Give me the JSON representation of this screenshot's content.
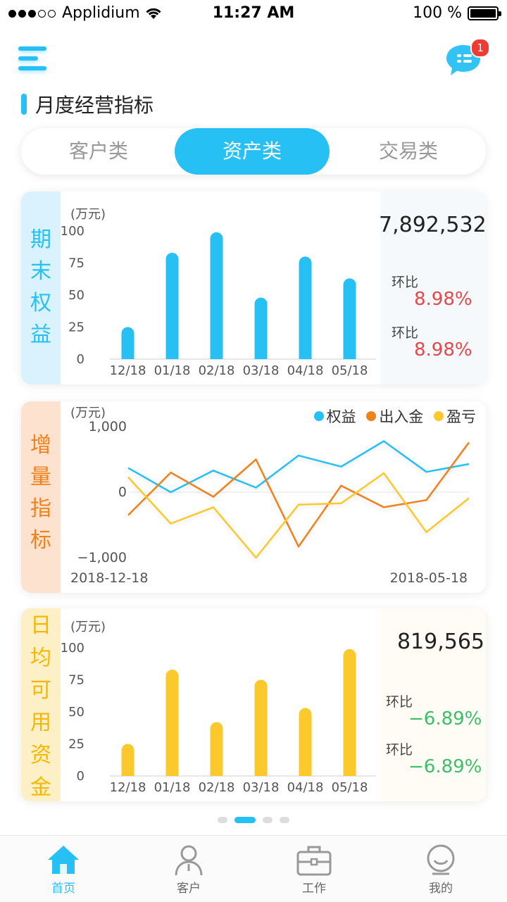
{
  "status_bar": {
    "carrier": "Applidium",
    "time": "11:27 AM",
    "battery": "100 %"
  },
  "header": {
    "menu_icon": "menu-icon",
    "chat_icon": "chat-icon",
    "notification_count": "1"
  },
  "section": {
    "title": "月度经营指标"
  },
  "tabs": [
    {
      "label": "客户类",
      "active": false
    },
    {
      "label": "资产类",
      "active": true
    },
    {
      "label": "交易类",
      "active": false
    }
  ],
  "cards": {
    "equity": {
      "title": "期末权益",
      "unit": "(万元)",
      "value": "7,892,532",
      "mom_label_1": "环比",
      "mom_value_1": "8.98%",
      "mom_label_2": "环比",
      "mom_value_2": "8.98%",
      "side_color": "#d9f2fd",
      "title_color": "#27c0f4",
      "value_color": "#e5474a"
    },
    "increment": {
      "title": "增量指标",
      "unit": "(万元)",
      "start_date": "2018-12-18",
      "end_date": "2018-05-18",
      "side_color": "#fde3cf",
      "title_color": "#f0821e"
    },
    "daily": {
      "title": "日均可用资金",
      "unit": "(万元)",
      "value": "819,565",
      "mom_label_1": "环比",
      "mom_value_1": "−6.89%",
      "mom_label_2": "环比",
      "mom_value_2": "−6.89%",
      "side_color": "#fdf0c6",
      "title_color": "#f5b800",
      "value_color": "#3dbf6a"
    }
  },
  "chart_data": [
    {
      "type": "bar",
      "categories": [
        "12/18",
        "01/18",
        "02/18",
        "03/18",
        "04/18",
        "05/18"
      ],
      "values": [
        25,
        83,
        99,
        48,
        80,
        63
      ],
      "ylabel": "(万元)",
      "yticks": [
        "0",
        "25",
        "50",
        "75",
        "100"
      ],
      "ylim": [
        0,
        100
      ],
      "color": "#27c0f4"
    },
    {
      "type": "line",
      "yticks": [
        "1,000",
        "0",
        "−1,000"
      ],
      "ylim": [
        -1000,
        1000
      ],
      "ylabel": "(万元)",
      "legend_position": "top-right",
      "x": [
        0,
        1,
        2,
        3,
        4,
        5,
        6,
        7,
        8,
        9,
        10,
        11
      ],
      "series": [
        {
          "name": "权益",
          "color": "#27c0f4",
          "values": [
            370,
            0,
            330,
            70,
            560,
            390,
            780,
            310,
            430,
            430,
            430,
            430
          ]
        },
        {
          "name": "出入金",
          "color": "#f0821e",
          "values": [
            -350,
            300,
            -70,
            500,
            -830,
            100,
            -230,
            -120,
            760,
            760,
            760,
            760
          ]
        },
        {
          "name": "盈亏",
          "color": "#fbc92c",
          "values": [
            230,
            -480,
            -230,
            -1000,
            -190,
            -170,
            290,
            -610,
            -90,
            -90,
            -90,
            -90
          ]
        }
      ]
    },
    {
      "type": "bar",
      "categories": [
        "12/18",
        "01/18",
        "02/18",
        "03/18",
        "04/18",
        "05/18"
      ],
      "values": [
        25,
        83,
        42,
        75,
        53,
        99
      ],
      "ylabel": "(万元)",
      "yticks": [
        "0",
        "25",
        "50",
        "75",
        "100"
      ],
      "ylim": [
        0,
        100
      ],
      "color": "#fbc92c"
    }
  ],
  "pagination": {
    "count": 4,
    "active": 1
  },
  "tabbar": [
    {
      "label": "首页",
      "icon": "home-icon",
      "active": true
    },
    {
      "label": "客户",
      "icon": "person-icon",
      "active": false
    },
    {
      "label": "工作",
      "icon": "briefcase-icon",
      "active": false
    },
    {
      "label": "我的",
      "icon": "smile-icon",
      "active": false
    }
  ]
}
